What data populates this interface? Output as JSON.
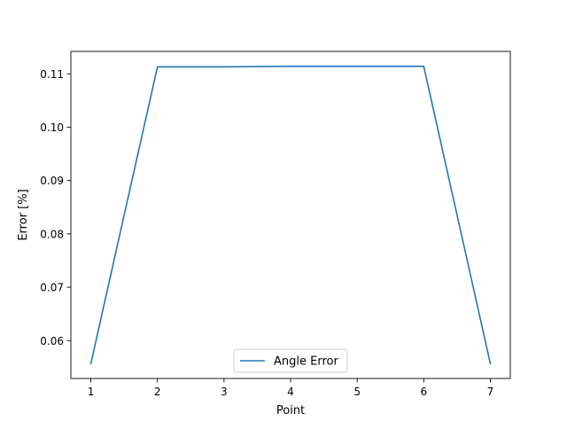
{
  "chart_data": {
    "type": "line",
    "title": "",
    "xlabel": "Point",
    "ylabel": "Error [%]",
    "x": [
      1,
      2,
      3,
      4,
      5,
      6,
      7
    ],
    "xticks": [
      "1",
      "2",
      "3",
      "4",
      "5",
      "6",
      "7"
    ],
    "yticks": [
      "0.06",
      "0.07",
      "0.08",
      "0.09",
      "0.10",
      "0.11"
    ],
    "xlim": [
      0.7,
      7.3
    ],
    "ylim": [
      0.0529,
      0.1142
    ],
    "grid": false,
    "legend_position": "lower center",
    "series": [
      {
        "name": "Angle Error",
        "color": "#1f77b4",
        "values": [
          0.0557,
          0.1113,
          0.1113,
          0.1114,
          0.1114,
          0.1114,
          0.0557
        ]
      }
    ]
  }
}
